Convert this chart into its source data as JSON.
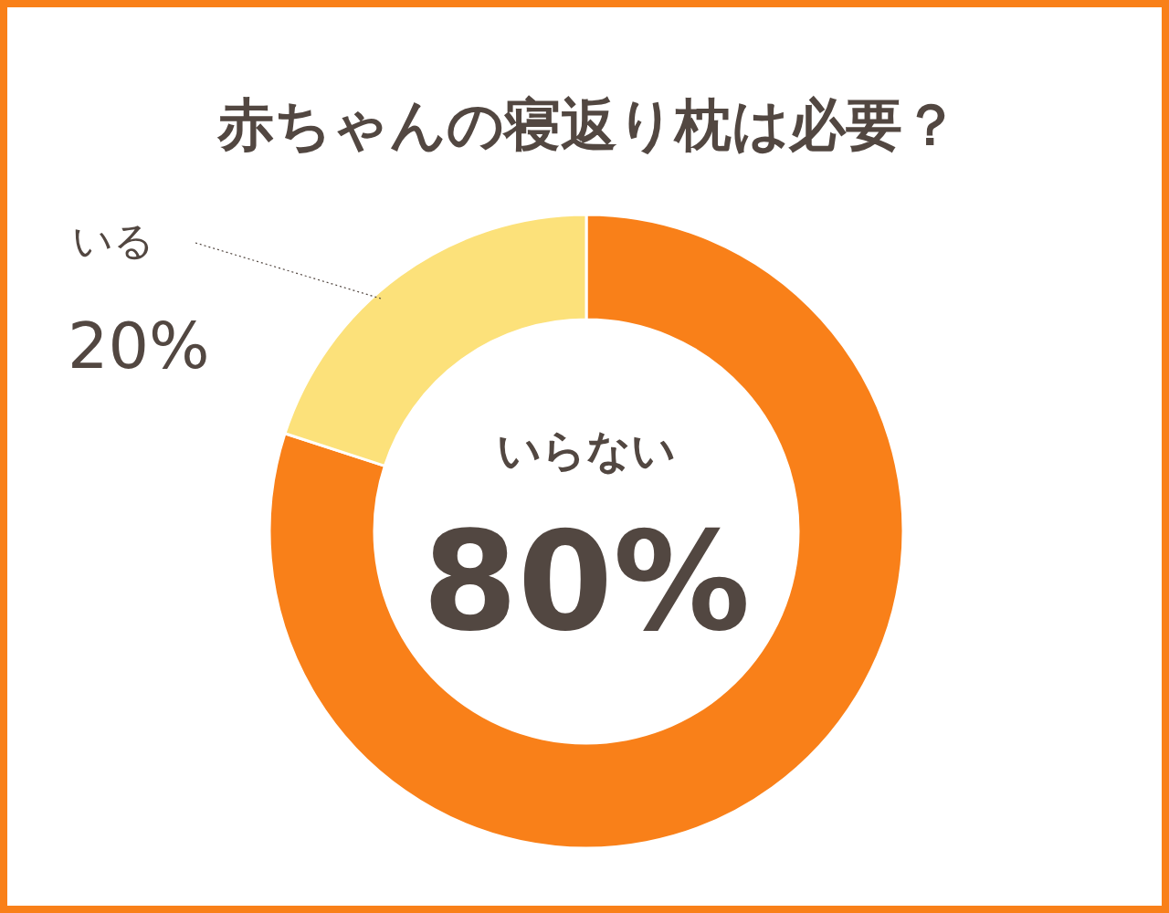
{
  "chart_data": {
    "type": "donut",
    "title": "赤ちゃんの寝返り枕は必要？",
    "categories": [
      "いらない",
      "いる"
    ],
    "values": [
      80,
      20
    ],
    "colors": [
      "#f98019",
      "#fce17a"
    ],
    "value_labels": [
      "80%",
      "20%"
    ]
  }
}
